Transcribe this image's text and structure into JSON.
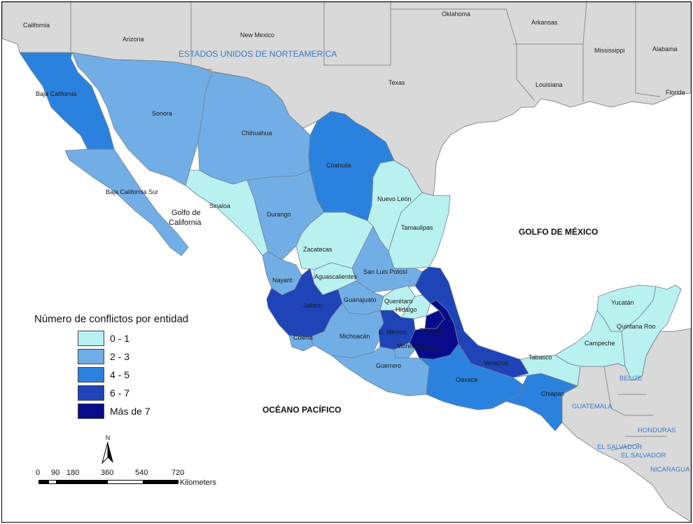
{
  "legend": {
    "title": "Número de conflictos por entidad",
    "classes": [
      {
        "label": "0 - 1",
        "color": "#b9f0f0"
      },
      {
        "label": "2 - 3",
        "color": "#72aee6"
      },
      {
        "label": "4 - 5",
        "color": "#2b82de"
      },
      {
        "label": "6 - 7",
        "color": "#1f44b8"
      },
      {
        "label": "Más de 7",
        "color": "#090c8a"
      }
    ]
  },
  "north_arrow": {
    "letter": "N"
  },
  "scale_bar": {
    "ticks": [
      "0",
      "90",
      "180",
      "360",
      "540",
      "720"
    ],
    "unit": "Kilometers"
  },
  "us_states": [
    "California",
    "Arizona",
    "New Mexico",
    "Texas",
    "Oklahoma",
    "Arkansas",
    "Louisiana",
    "Mississippi",
    "Alabama",
    "Florida"
  ],
  "countries": {
    "usa": "ESTADOS UNIDOS DE NORTEAMERICA",
    "belize": "BELIZE",
    "guatemala": "GUATEMALA",
    "honduras": "HONDURAS",
    "el_salvador_1": "EL SALVADOR",
    "el_salvador_2": "EL SALVADOR",
    "nicaragua": "NICARAGUA"
  },
  "water_bodies": {
    "gulf_mexico": "GOLFO DE MÉXICO",
    "pacific": "OCÉANO PACÍFICO",
    "gulf_california_1": "Golfo de",
    "gulf_california_2": "California"
  },
  "states": [
    {
      "name": "Baja California",
      "cls": 2
    },
    {
      "name": "Baja California Sur",
      "cls": 1
    },
    {
      "name": "Sonora",
      "cls": 1
    },
    {
      "name": "Chihuahua",
      "cls": 1
    },
    {
      "name": "Coahuila",
      "cls": 2
    },
    {
      "name": "Nuevo León",
      "cls": 0
    },
    {
      "name": "Tamaulipas",
      "cls": 0
    },
    {
      "name": "Sinaloa",
      "cls": 0
    },
    {
      "name": "Durango",
      "cls": 1
    },
    {
      "name": "Zacatecas",
      "cls": 0
    },
    {
      "name": "San Luis Potosí",
      "cls": 1
    },
    {
      "name": "Nayarit",
      "cls": 1
    },
    {
      "name": "Aguascalientes",
      "cls": 0
    },
    {
      "name": "Jalisco",
      "cls": 3
    },
    {
      "name": "Guanajuato",
      "cls": 1
    },
    {
      "name": "Querétaro",
      "cls": 0
    },
    {
      "name": "Hidalgo",
      "cls": 0
    },
    {
      "name": "Colima",
      "cls": 1
    },
    {
      "name": "Michoacán",
      "cls": 1
    },
    {
      "name": "E. México",
      "cls": 3
    },
    {
      "name": "Tlaxcala",
      "cls": 4
    },
    {
      "name": "Morelos",
      "cls": 1
    },
    {
      "name": "Puebla",
      "cls": 4
    },
    {
      "name": "Veracruz",
      "cls": 3
    },
    {
      "name": "Guerrero",
      "cls": 1
    },
    {
      "name": "Oaxaca",
      "cls": 2
    },
    {
      "name": "Chiapas",
      "cls": 2
    },
    {
      "name": "Tabasco",
      "cls": 0
    },
    {
      "name": "Campeche",
      "cls": 0
    },
    {
      "name": "Yucatán",
      "cls": 0
    },
    {
      "name": "Quintana Roo",
      "cls": 0
    }
  ]
}
